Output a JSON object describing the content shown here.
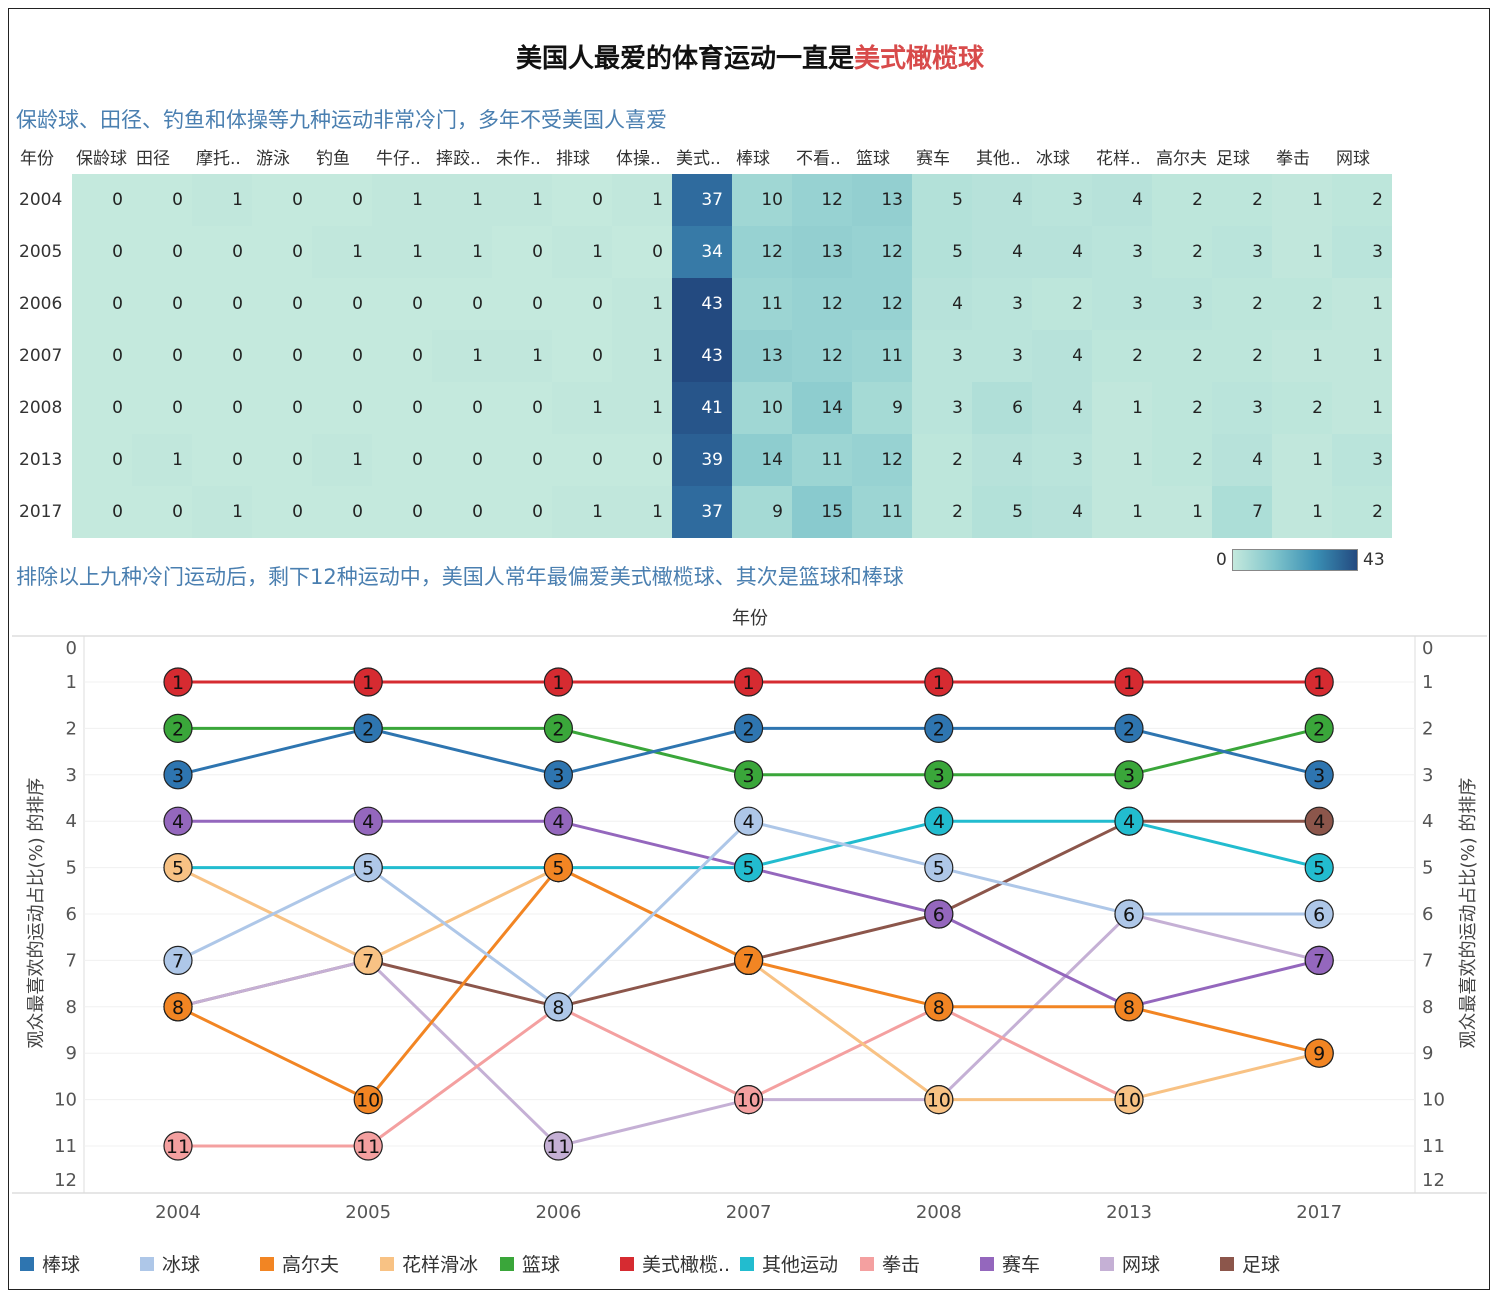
{
  "title": {
    "main": "美国人最爱的体育运动一直是",
    "highlight": "美式橄榄球"
  },
  "subtitle1": "保龄球、田径、钓鱼和体操等九种运动非常冷门，多年不受美国人喜爱",
  "subtitle2": "排除以上九种冷门运动后，剩下12种运动中，美国人常年最偏爱美式橄榄球、其次是篮球和棒球",
  "colors": {
    "title_highlight": "#d84b4b",
    "subtitle": "#4a7fb0"
  },
  "chart_data": [
    {
      "type": "heatmap",
      "corner_label": "年份",
      "columns": [
        "保龄球",
        "田径",
        "摩托..",
        "游泳",
        "钓鱼",
        "牛仔..",
        "摔跤..",
        "未作..",
        "排球",
        "体操..",
        "美式..",
        "棒球",
        "不看..",
        "篮球",
        "赛车",
        "其他..",
        "冰球",
        "花样..",
        "高尔夫",
        "足球",
        "拳击",
        "网球"
      ],
      "rows": [
        "2004",
        "2005",
        "2006",
        "2007",
        "2008",
        "2013",
        "2017"
      ],
      "values": [
        [
          0,
          0,
          1,
          0,
          0,
          1,
          1,
          1,
          0,
          1,
          37,
          10,
          12,
          13,
          5,
          4,
          3,
          4,
          2,
          2,
          1,
          2
        ],
        [
          0,
          0,
          0,
          0,
          1,
          1,
          1,
          0,
          1,
          0,
          34,
          12,
          13,
          12,
          5,
          4,
          4,
          3,
          2,
          3,
          1,
          3
        ],
        [
          0,
          0,
          0,
          0,
          0,
          0,
          0,
          0,
          0,
          1,
          43,
          11,
          12,
          12,
          4,
          3,
          2,
          3,
          3,
          2,
          2,
          1
        ],
        [
          0,
          0,
          0,
          0,
          0,
          0,
          1,
          1,
          0,
          1,
          43,
          13,
          12,
          11,
          3,
          3,
          4,
          2,
          2,
          2,
          1,
          1
        ],
        [
          0,
          0,
          0,
          0,
          0,
          0,
          0,
          0,
          1,
          1,
          41,
          10,
          14,
          9,
          3,
          6,
          4,
          1,
          2,
          3,
          2,
          1
        ],
        [
          0,
          1,
          0,
          0,
          1,
          0,
          0,
          0,
          0,
          0,
          39,
          14,
          11,
          12,
          2,
          4,
          3,
          1,
          2,
          4,
          1,
          3
        ],
        [
          0,
          0,
          1,
          0,
          0,
          0,
          0,
          0,
          1,
          1,
          37,
          9,
          15,
          11,
          2,
          5,
          4,
          1,
          1,
          7,
          1,
          2
        ]
      ],
      "color_range": [
        0,
        43
      ],
      "legend_min": "0",
      "legend_max": "43"
    },
    {
      "type": "line",
      "top_axis_label": "年份",
      "ylabel": "观众最喜欢的运动占比(%) 的排序",
      "ylim": [
        0,
        12
      ],
      "y_ticks": [
        0,
        1,
        2,
        3,
        4,
        5,
        6,
        7,
        8,
        9,
        10,
        11,
        12
      ],
      "y_reversed": true,
      "categories": [
        "2004",
        "2005",
        "2006",
        "2007",
        "2008",
        "2013",
        "2017"
      ],
      "series": [
        {
          "name": "棒球",
          "color": "#2e75b0",
          "values": [
            3,
            2,
            3,
            2,
            2,
            2,
            3
          ]
        },
        {
          "name": "冰球",
          "color": "#aec7e8",
          "values": [
            7,
            5,
            8,
            4,
            5,
            6,
            6
          ]
        },
        {
          "name": "高尔夫",
          "color": "#f28523",
          "values": [
            8,
            10,
            5,
            7,
            8,
            8,
            9
          ]
        },
        {
          "name": "花样滑冰",
          "color": "#f8c284",
          "values": [
            5,
            7,
            5,
            7,
            10,
            10,
            9
          ]
        },
        {
          "name": "篮球",
          "color": "#3aa63a",
          "values": [
            2,
            2,
            2,
            3,
            3,
            3,
            2
          ]
        },
        {
          "name": "美式橄榄..",
          "color": "#d62b31",
          "values": [
            1,
            1,
            1,
            1,
            1,
            1,
            1
          ]
        },
        {
          "name": "其他运动",
          "color": "#22bccf",
          "values": [
            5,
            5,
            5,
            5,
            4,
            4,
            5
          ]
        },
        {
          "name": "拳击",
          "color": "#f4a0a0",
          "values": [
            11,
            11,
            8,
            10,
            8,
            10,
            null
          ]
        },
        {
          "name": "赛车",
          "color": "#9467bd",
          "values": [
            4,
            4,
            4,
            5,
            6,
            8,
            7
          ]
        },
        {
          "name": "网球",
          "color": "#c5b0d5",
          "values": [
            8,
            7,
            11,
            10,
            10,
            6,
            7
          ]
        },
        {
          "name": "足球",
          "color": "#8c564b",
          "values": [
            8,
            7,
            8,
            7,
            6,
            4,
            4
          ]
        }
      ]
    }
  ]
}
